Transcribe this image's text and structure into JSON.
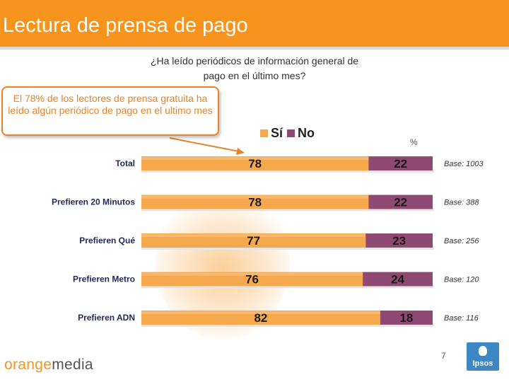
{
  "header": {
    "title": "Lectura de prensa de pago"
  },
  "question": {
    "line1": "¿Ha leído periódicos de información general de",
    "line2": "pago en el último mes?"
  },
  "callout": {
    "text": "El 78% de los lectores de prensa gratuita ha leído algún periódico de pago en el ultimo mes"
  },
  "colors": {
    "accent": "#f7941d",
    "si": "#f6a84c",
    "no": "#8e4a73",
    "callout": "#e9822a"
  },
  "chart_data": {
    "type": "bar",
    "orientation": "horizontal",
    "stacked": true,
    "percent_label": "%",
    "categories": [
      "Total",
      "Prefieren 20 Minutos",
      "Prefieren Qué",
      "Prefieren Metro",
      "Prefieren ADN"
    ],
    "series": [
      {
        "name": "Sí",
        "values": [
          78,
          78,
          77,
          76,
          82
        ]
      },
      {
        "name": "No",
        "values": [
          22,
          22,
          23,
          24,
          18
        ]
      }
    ],
    "bases": [
      "Base: 1003",
      "Base: 388",
      "Base: 256",
      "Base: 120",
      "Base: 116"
    ],
    "xlim": [
      0,
      100
    ]
  },
  "footer": {
    "brand_orange": "orange",
    "brand_media": "media",
    "page_number": "7",
    "logo_text": "Ipsos"
  }
}
